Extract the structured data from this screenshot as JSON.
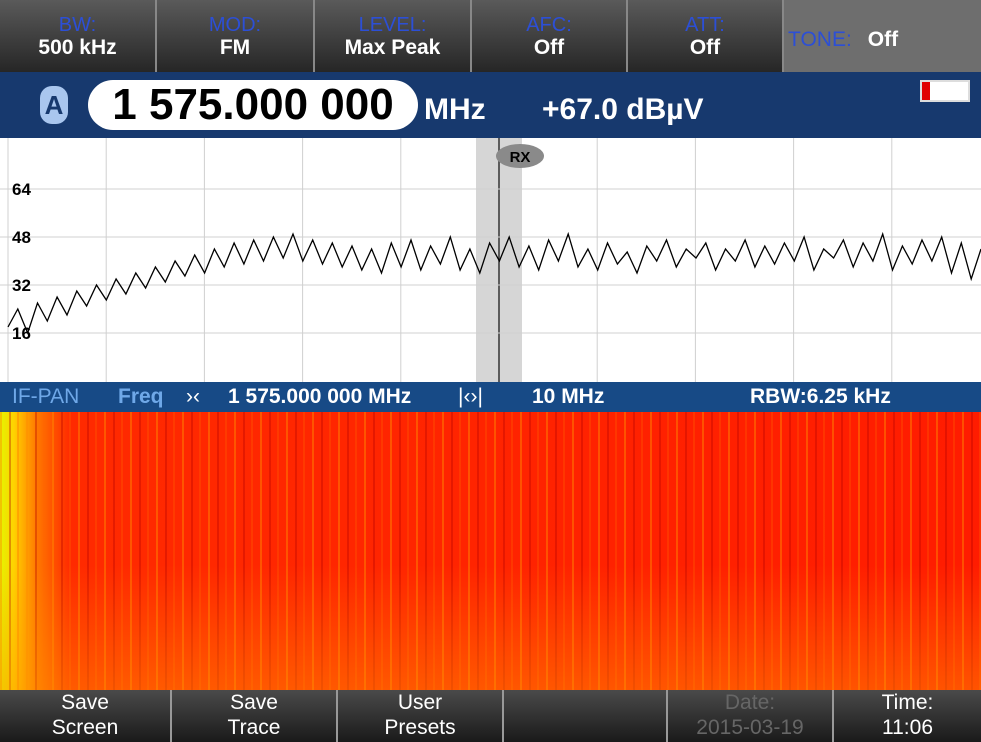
{
  "top_bar": {
    "items": [
      {
        "label": "BW:",
        "value": "500 kHz"
      },
      {
        "label": "MOD:",
        "value": "FM"
      },
      {
        "label": "LEVEL:",
        "value": "Max Peak"
      },
      {
        "label": "AFC:",
        "value": "Off"
      },
      {
        "label": "ATT:",
        "value": "Off"
      }
    ],
    "tone": {
      "label": "TONE:",
      "value": "Off"
    }
  },
  "freq_bar": {
    "channel": "A",
    "frequency": "1 575.000 000",
    "unit": "MHz",
    "level": "+67.0 dBµV"
  },
  "chart_data": {
    "type": "line",
    "color": "#000000",
    "marker": "RX",
    "ylim": [
      0,
      80
    ],
    "yticks": [
      16,
      32,
      48,
      64
    ],
    "grid": true,
    "values": [
      18,
      24,
      16,
      26,
      20,
      28,
      22,
      30,
      25,
      32,
      27,
      34,
      29,
      36,
      31,
      38,
      33,
      40,
      35,
      42,
      36,
      44,
      38,
      46,
      39,
      47,
      40,
      48,
      41,
      49,
      40,
      47,
      39,
      46,
      38,
      45,
      37,
      44,
      36,
      46,
      38,
      47,
      37,
      45,
      39,
      48,
      37,
      44,
      36,
      46,
      40,
      48,
      38,
      45,
      37,
      47,
      40,
      49,
      38,
      44,
      37,
      46,
      39,
      43,
      36,
      45,
      40,
      47,
      38,
      44,
      41,
      46,
      37,
      44,
      40,
      47,
      38,
      45,
      39,
      46,
      40,
      48,
      37,
      44,
      41,
      47,
      38,
      46,
      40,
      49,
      37,
      45,
      39,
      47,
      40,
      48,
      36,
      46,
      34,
      44
    ]
  },
  "ifpan_bar": {
    "mode": "IF-PAN",
    "param": "Freq",
    "center_icon": "›‹",
    "center": "1 575.000 000 MHz",
    "span_icon": "|‹›|",
    "span": "10 MHz",
    "rbw": "RBW:6.25 kHz"
  },
  "softkeys": [
    {
      "line1": "Save",
      "line2": "Screen"
    },
    {
      "line1": "Save",
      "line2": "Trace"
    },
    {
      "line1": "User",
      "line2": "Presets"
    },
    {
      "line1": "Date:",
      "line2": "2015-03-19"
    },
    {
      "line1": "Time:",
      "line2": "11:06"
    }
  ]
}
